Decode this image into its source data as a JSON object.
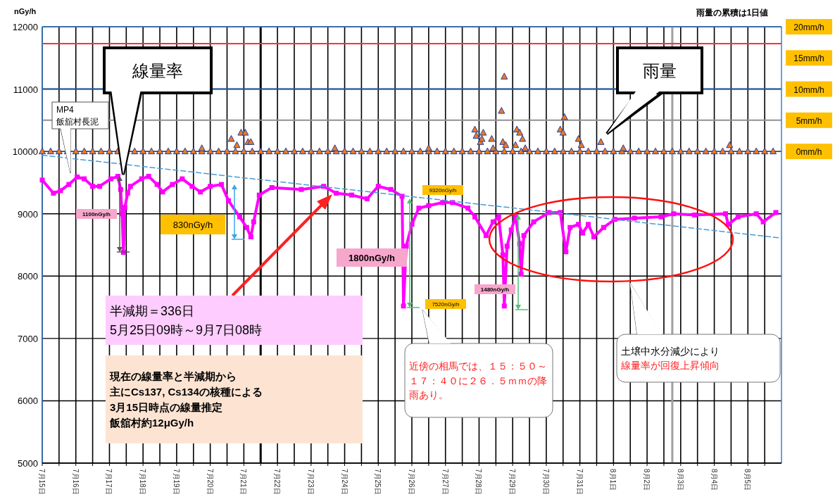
{
  "chart_data": {
    "type": "line",
    "ylabel": "nGy/h",
    "y2label": "雨量の累積は1日値",
    "xlim": [
      "--07-15T00:00",
      "--08-06T00:00"
    ],
    "xticks": [
      {
        "value": "--07-15T00:00",
        "label": "7月15日"
      },
      {
        "value": "--07-15T12:00",
        "label": null
      },
      {
        "value": "--07-16T00:00",
        "label": "7月16日"
      },
      {
        "value": "--07-16T12:00",
        "label": null
      },
      {
        "value": "--07-17T00:00",
        "label": "7月17日"
      },
      {
        "value": "--07-17T12:00",
        "label": null
      },
      {
        "value": "--07-18T00:00",
        "label": "7月18日"
      },
      {
        "value": "--07-18T12:00",
        "label": null
      },
      {
        "value": "--07-19T00:00",
        "label": "7月19日"
      },
      {
        "value": "--07-19T12:00",
        "label": null
      },
      {
        "value": "--07-20T00:00",
        "label": "7月20日"
      },
      {
        "value": "--07-20T12:00",
        "label": null
      },
      {
        "value": "--07-21T00:00",
        "label": "7月21日"
      },
      {
        "value": "--07-21T12:00",
        "label": null
      },
      {
        "value": "--07-22T00:00",
        "label": "7月22日"
      },
      {
        "value": "--07-22T12:00",
        "label": null
      },
      {
        "value": "--07-23T00:00",
        "label": "7月23日"
      },
      {
        "value": "--07-23T12:00",
        "label": null
      },
      {
        "value": "--07-24T00:00",
        "label": "7月24日"
      },
      {
        "value": "--07-24T12:00",
        "label": null
      },
      {
        "value": "--07-25T00:00",
        "label": "7月25日"
      },
      {
        "value": "--07-25T12:00",
        "label": null
      },
      {
        "value": "--07-26T00:00",
        "label": "7月26日"
      },
      {
        "value": "--07-26T12:00",
        "label": null
      },
      {
        "value": "--07-27T00:00",
        "label": "7月27日"
      },
      {
        "value": "--07-27T12:00",
        "label": null
      },
      {
        "value": "--07-28T00:00",
        "label": "7月28日"
      },
      {
        "value": "--07-28T12:00",
        "label": null
      },
      {
        "value": "--07-29T00:00",
        "label": "7月29日"
      },
      {
        "value": "--07-29T12:00",
        "label": null
      },
      {
        "value": "--07-30T00:00",
        "label": "7月30日"
      },
      {
        "value": "--07-30T12:00",
        "label": null
      },
      {
        "value": "--07-31T00:00",
        "label": "7月31日"
      },
      {
        "value": "--07-31T12:00",
        "label": null
      },
      {
        "value": "--08-01T00:00",
        "label": "8月1日"
      },
      {
        "value": "--08-01T12:00",
        "label": null
      },
      {
        "value": "--08-02T00:00",
        "label": "8月2日"
      },
      {
        "value": "--08-02T12:00",
        "label": null
      },
      {
        "value": "--08-03T00:00",
        "label": "8月3日"
      },
      {
        "value": "--08-03T12:00",
        "label": null
      },
      {
        "value": "--08-04T00:00",
        "label": "8月4日"
      },
      {
        "value": "--08-04T12:00",
        "label": null
      },
      {
        "value": "--08-05T00:00",
        "label": "8月5日"
      },
      {
        "value": "--08-05T12:00",
        "label": null
      }
    ],
    "ylim": [
      5000,
      12000
    ],
    "yticks": [
      5000,
      6000,
      7000,
      8000,
      9000,
      10000,
      11000,
      12000
    ],
    "y2lim": [
      -50,
      20
    ],
    "y2ticks": [
      {
        "value": 0,
        "label": "0mm/h"
      },
      {
        "value": 5,
        "label": "5mm/h"
      },
      {
        "value": 10,
        "label": "10mm/h"
      },
      {
        "value": 15,
        "label": "15mm/h"
      },
      {
        "value": 20,
        "label": "20mm/h"
      }
    ],
    "grid": true,
    "series": [
      {
        "color": "#ff00ff",
        "marker": "square",
        "line_style": "solid",
        "x": [
          "--07-15T00:00",
          "--07-15T08:00",
          "--07-15T13:00",
          "--07-15T19:00",
          "--07-16T01:00",
          "--07-16T06:00",
          "--07-16T12:00",
          "--07-16T17:00",
          "--07-17T01:00",
          "--07-17T06:00",
          "--07-17T08:00",
          "--07-17T09:00",
          "--07-17T10:00",
          "--07-17T11:00",
          "--07-17T13:00",
          "--07-17T15:00",
          "--07-17T23:00",
          "--07-18T04:00",
          "--07-18T10:00",
          "--07-18T14:00",
          "--07-18T21:00",
          "--07-19T04:00",
          "--07-19T11:00",
          "--07-19T17:00",
          "--07-20T00:00",
          "--07-20T08:00",
          "--07-20T13:00",
          "--07-20T21:00",
          "--07-21T02:00",
          "--07-21T05:00",
          "--07-21T07:00",
          "--07-21T11:00",
          "--07-21T20:00",
          "--07-22T17:00",
          "--07-23T09:00",
          "--07-23T18:00",
          "--07-24T05:00",
          "--07-24T16:00",
          "--07-25T00:00",
          "--07-25T09:00",
          "--07-25T17:00",
          "--07-25T18:00",
          "--07-25T20:00",
          "--07-26T00:00",
          "--07-26T05:00",
          "--07-26T12:00",
          "--07-26T22:00",
          "--07-27T05:00",
          "--07-27T16:00",
          "--07-27T21:00",
          "--07-28T05:00",
          "--07-28T10:00",
          "--07-28T14:00",
          "--07-28T17:00",
          "--07-28T18:00",
          "--07-28T20:00",
          "--07-28T23:00",
          "--07-29T02:00",
          "--07-29T05:00",
          "--07-29T06:00",
          "--07-29T08:00",
          "--07-29T15:00",
          "--07-30T02:00",
          "--07-30T10:00",
          "--07-30T14:00",
          "--07-30T17:00",
          "--07-30T23:00",
          "--07-31T02:00",
          "--07-31T06:00",
          "--07-31T10:00",
          "--07-31T17:00",
          "--08-01T01:00",
          "--08-01T15:00",
          "--08-02T10:00",
          "--08-02T19:00",
          "--08-03T10:00",
          "--08-04T08:00",
          "--08-04T10:00",
          "--08-04T17:00",
          "--08-05T06:00",
          "--08-05T11:00",
          "--08-05T20:00"
        ],
        "values": [
          9540,
          9330,
          9370,
          9470,
          9590,
          9560,
          9440,
          9440,
          9560,
          9600,
          9390,
          9000,
          8380,
          9100,
          9330,
          9440,
          9560,
          9600,
          9470,
          9350,
          9470,
          9560,
          9440,
          9350,
          9440,
          9470,
          9210,
          8950,
          8780,
          8630,
          8870,
          9300,
          9420,
          9390,
          9440,
          9330,
          9300,
          9240,
          9440,
          9390,
          9280,
          7520,
          8480,
          8830,
          9090,
          9130,
          9180,
          9180,
          9090,
          8950,
          8650,
          8870,
          8950,
          8340,
          7520,
          8480,
          8740,
          8950,
          8520,
          8030,
          8650,
          8870,
          9020,
          9020,
          8390,
          8780,
          8830,
          8690,
          8830,
          8630,
          8780,
          8910,
          8930,
          8950,
          9000,
          8980,
          9000,
          8830,
          8950,
          9000,
          8870,
          9020
        ]
      },
      {
        "color": "#4a9ad8",
        "marker": "none",
        "line_style": "dashed",
        "x": [
          "--07-15T00:00",
          "--08-06T00:00"
        ],
        "values": [
          9940,
          8610
        ]
      },
      {
        "type": "scatter",
        "axis": "y2",
        "color": "#f07820",
        "marker": "triangle",
        "x": [
          "--07-15T00:00",
          "--07-15T06:00",
          "--07-15T12:00",
          "--07-15T18:00",
          "--07-16T00:00",
          "--07-16T06:00",
          "--07-16T12:00",
          "--07-16T18:00",
          "--07-17T00:00",
          "--07-17T06:00",
          "--07-17T12:00",
          "--07-17T18:00",
          "--07-18T00:00",
          "--07-18T06:00",
          "--07-18T12:00",
          "--07-18T18:00",
          "--07-19T00:00",
          "--07-19T06:00",
          "--07-19T12:00",
          "--07-19T18:00",
          "--07-20T00:00",
          "--07-20T06:00",
          "--07-20T12:00",
          "--07-20T18:00",
          "--07-21T00:00",
          "--07-21T06:00",
          "--07-21T12:00",
          "--07-21T18:00",
          "--07-22T00:00",
          "--07-22T06:00",
          "--07-22T12:00",
          "--07-22T18:00",
          "--07-23T00:00",
          "--07-23T06:00",
          "--07-23T12:00",
          "--07-23T18:00",
          "--07-24T00:00",
          "--07-24T06:00",
          "--07-24T12:00",
          "--07-24T18:00",
          "--07-25T00:00",
          "--07-25T06:00",
          "--07-25T12:00",
          "--07-25T18:00",
          "--07-26T00:00",
          "--07-26T06:00",
          "--07-26T12:00",
          "--07-26T18:00",
          "--07-27T00:00",
          "--07-27T06:00",
          "--07-27T12:00",
          "--07-27T18:00",
          "--07-28T00:00",
          "--07-28T06:00",
          "--07-28T12:00",
          "--07-28T18:00",
          "--07-29T00:00",
          "--07-29T06:00",
          "--07-29T12:00",
          "--07-29T18:00",
          "--07-30T00:00",
          "--07-30T06:00",
          "--07-30T12:00",
          "--07-30T18:00",
          "--07-31T00:00",
          "--07-31T06:00",
          "--07-31T12:00",
          "--07-31T18:00",
          "--08-01T00:00",
          "--08-01T06:00",
          "--08-01T12:00",
          "--08-01T18:00",
          "--08-02T00:00",
          "--08-02T06:00",
          "--08-02T12:00",
          "--08-02T18:00",
          "--08-03T00:00",
          "--08-03T06:00",
          "--08-03T12:00",
          "--08-03T18:00",
          "--08-04T00:00",
          "--08-04T06:00",
          "--08-04T12:00",
          "--08-04T18:00",
          "--08-05T00:00",
          "--08-05T06:00",
          "--08-05T12:00",
          "--08-05T18:00",
          "--07-19T18:00",
          "--07-20T15:00",
          "--07-20T19:00",
          "--07-20T22:00",
          "--07-21T01:00",
          "--07-21T03:00",
          "--07-21T05:00",
          "--07-23T17:00",
          "--07-26T12:00",
          "--07-27T21:00",
          "--07-27T22:00",
          "--07-28T01:00",
          "--07-28T02:00",
          "--07-28T03:00",
          "--07-28T09:00",
          "--07-28T10:00",
          "--07-28T16:00",
          "--07-28T17:00",
          "--07-28T18:00",
          "--07-28T19:00",
          "--07-29T02:00",
          "--07-29T03:00",
          "--07-29T05:00",
          "--07-29T07:00",
          "--07-29T09:00",
          "--07-30T10:00",
          "--07-30T12:00",
          "--07-30T13:00",
          "--07-30T23:00",
          "--07-31T01:00",
          "--07-31T15:00",
          "--08-01T07:00",
          "--08-04T11:00"
        ],
        "values": [
          0,
          0,
          0,
          0,
          0,
          0,
          0,
          0,
          0,
          0,
          0,
          0,
          0,
          0,
          0,
          0,
          0,
          0,
          0,
          0,
          0,
          0,
          0,
          0,
          0,
          0,
          0,
          0,
          0,
          0,
          0,
          0,
          0,
          0,
          0,
          0,
          0,
          0,
          0,
          0,
          0,
          0,
          0,
          0,
          0,
          0,
          0,
          0,
          0,
          0,
          0,
          0,
          0,
          0,
          0,
          0,
          0,
          0,
          0,
          0,
          0,
          0,
          0,
          0,
          0,
          0,
          0,
          0,
          0,
          0,
          0,
          0,
          0,
          0,
          0,
          0,
          0,
          0,
          0,
          0,
          0,
          0,
          0,
          0,
          0,
          0,
          0,
          0,
          0.5,
          2,
          1,
          3,
          3,
          1.5,
          1.5,
          0.5,
          0.5,
          3.5,
          2.5,
          1.5,
          2,
          3,
          2,
          0.5,
          6.5,
          1.5,
          12,
          1,
          1,
          3.5,
          3,
          2,
          0.5,
          3.5,
          3,
          5.5,
          2,
          1,
          1.5,
          0.5,
          1
        ]
      }
    ],
    "ref_lines": [
      {
        "axis": "x",
        "value": "--07-21T12:00",
        "color": "#000000"
      },
      {
        "axis": "x",
        "value": "--08-02T18:00",
        "color": "#a0a0a0"
      },
      {
        "axis": "y",
        "value": 11730,
        "color": "#ff3030"
      },
      {
        "axis": "y2",
        "value": 10,
        "color": "#2060b0"
      },
      {
        "axis": "y2",
        "value": 5,
        "color": "#909090"
      }
    ],
    "annotations": [
      "線量率",
      "雨量",
      "MP4\n飯舘村長泥",
      "1100nGy/h",
      "830nGy/h",
      "1800nGy/h",
      "1480nGy/h",
      "9320nGy/h",
      "7520nGy/h",
      "半減期＝336日\n5月25日09時～9月7日08時",
      "現在の線量率と半減期から",
      "主にCs137, Cs134の核種による",
      "3月15日時点の線量推定",
      "飯舘村約12μGy/h",
      "近傍の相馬では、１５：５０～１７：４０に２６．５ｍｍの降雨あり。",
      "土壌中水分減少により",
      "線量率が回復上昇傾向"
    ]
  }
}
